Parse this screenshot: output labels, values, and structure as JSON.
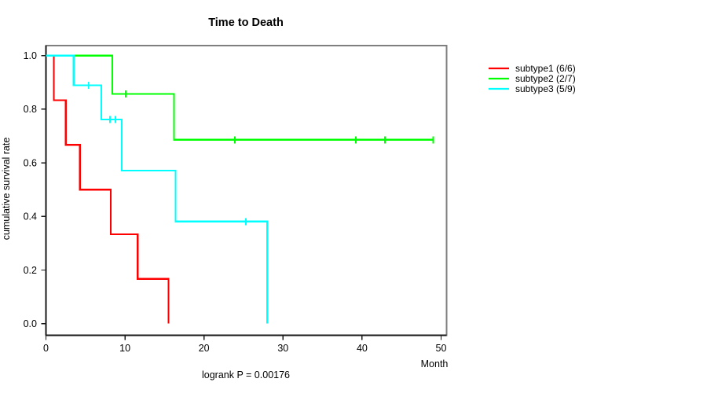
{
  "chart_data": {
    "type": "line",
    "subtype": "kaplan-meier-step",
    "title": "Time to Death",
    "xlabel": "Month",
    "ylabel": "cumulative survival rate",
    "footnote": "logrank P = 0.00176",
    "xlim": [
      0,
      50
    ],
    "ylim": [
      0.0,
      1.0
    ],
    "x_ticks": [
      0,
      10,
      20,
      30,
      40,
      50
    ],
    "y_ticks": [
      1.0,
      0.8,
      0.6,
      0.4,
      0.2,
      0.0
    ],
    "grid": false,
    "legend_position": "right-outside",
    "frame_color": "#7f7f7f",
    "axis_color": "#1a1a1a",
    "series": [
      {
        "name": "subtype1",
        "label": "subtype1 (6/6)",
        "color": "#ff0000",
        "points": [
          [
            0,
            1.0
          ],
          [
            1.0,
            1.0
          ],
          [
            1.0,
            0.833
          ],
          [
            2.5,
            0.833
          ],
          [
            2.5,
            0.667
          ],
          [
            4.3,
            0.667
          ],
          [
            4.3,
            0.5
          ],
          [
            8.2,
            0.5
          ],
          [
            8.2,
            0.333
          ],
          [
            11.6,
            0.333
          ],
          [
            11.6,
            0.167
          ],
          [
            15.5,
            0.167
          ],
          [
            15.5,
            0.0
          ]
        ],
        "censor_marks": []
      },
      {
        "name": "subtype2",
        "label": "subtype2 (2/7)",
        "color": "#00ff00",
        "points": [
          [
            0,
            1.0
          ],
          [
            8.4,
            1.0
          ],
          [
            8.4,
            0.857
          ],
          [
            16.2,
            0.857
          ],
          [
            16.2,
            0.686
          ],
          [
            49.0,
            0.686
          ]
        ],
        "censor_marks": [
          [
            10.1,
            0.857
          ],
          [
            23.9,
            0.686
          ],
          [
            39.2,
            0.686
          ],
          [
            42.9,
            0.686
          ],
          [
            49.0,
            0.686
          ]
        ]
      },
      {
        "name": "subtype3",
        "label": "subtype3 (5/9)",
        "color": "#00ffff",
        "points": [
          [
            0,
            1.0
          ],
          [
            3.5,
            1.0
          ],
          [
            3.5,
            0.889
          ],
          [
            7.0,
            0.889
          ],
          [
            7.0,
            0.762
          ],
          [
            9.6,
            0.762
          ],
          [
            9.6,
            0.571
          ],
          [
            16.4,
            0.571
          ],
          [
            16.4,
            0.381
          ],
          [
            28.0,
            0.381
          ],
          [
            28.0,
            0.0
          ]
        ],
        "censor_marks": [
          [
            5.4,
            0.889
          ],
          [
            8.1,
            0.762
          ],
          [
            8.8,
            0.762
          ],
          [
            25.3,
            0.381
          ]
        ]
      }
    ]
  }
}
